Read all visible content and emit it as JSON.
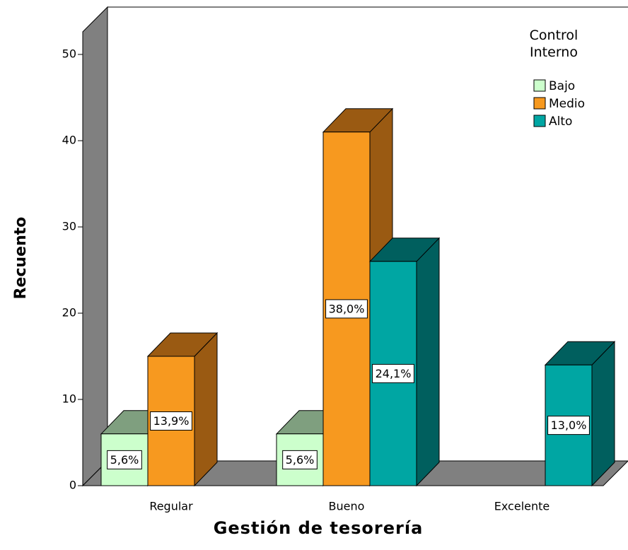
{
  "chart_data": {
    "type": "bar3d",
    "x_label": "Gestión de tesorería",
    "y_label": "Recuento",
    "legend_title": "Control Interno",
    "legend": "upper right",
    "categories": [
      "Regular",
      "Bueno",
      "Excelente"
    ],
    "ylim": [
      0,
      52
    ],
    "yticks": [
      0,
      10,
      20,
      30,
      40,
      50
    ],
    "series": [
      {
        "name": "Bajo",
        "color": "#ccffcc",
        "shade": "#7f9f7f",
        "values": [
          6,
          6,
          null
        ],
        "percent_labels": [
          "5,6%",
          "5,6%",
          null
        ]
      },
      {
        "name": "Medio",
        "color": "#f7991f",
        "shade": "#9a5a12",
        "values": [
          15,
          41,
          null
        ],
        "percent_labels": [
          "13,9%",
          "38,0%",
          null
        ]
      },
      {
        "name": "Alto",
        "color": "#00a6a3",
        "shade": "#005f5e",
        "values": [
          null,
          26,
          14
        ],
        "percent_labels": [
          null,
          "24,1%",
          "13,0%"
        ]
      }
    ]
  }
}
